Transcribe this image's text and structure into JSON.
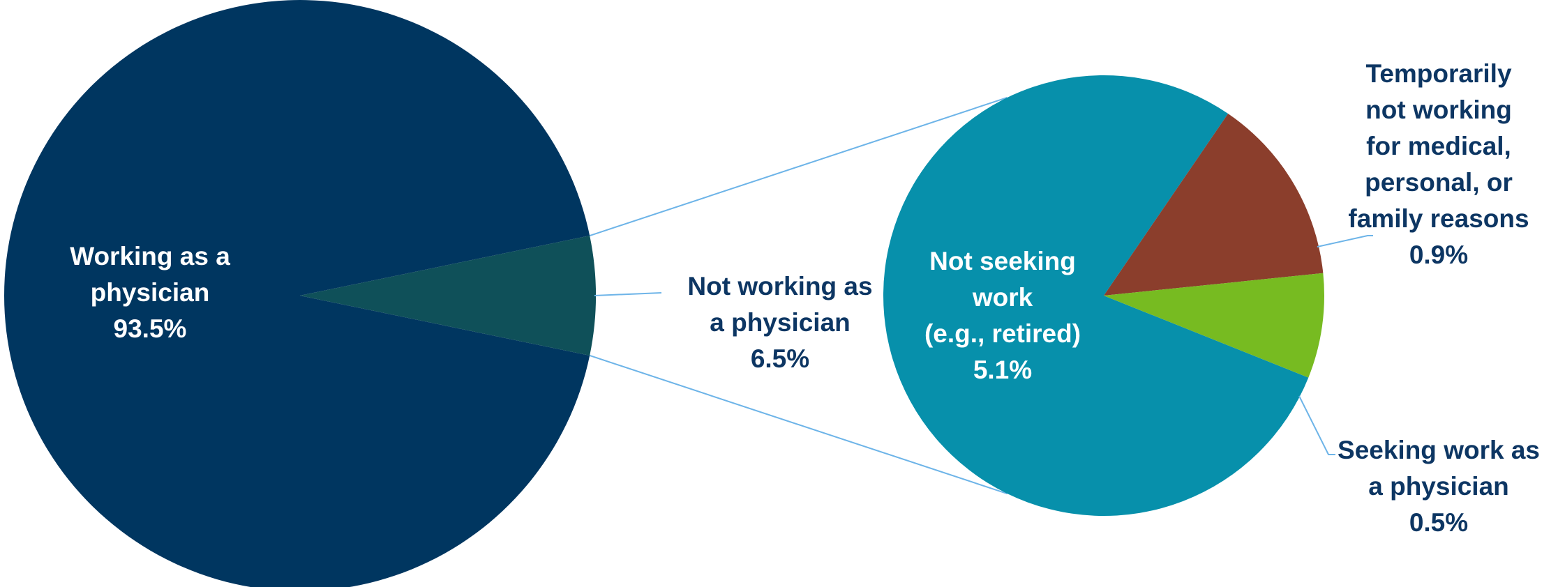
{
  "chart_data": {
    "type": "pie",
    "subtype": "pie-of-pie",
    "colors": {
      "working": "#003660",
      "not_working": "#0f5059",
      "not_seeking": "#0790ab",
      "temporarily": "#8b3e2c",
      "seeking": "#77bb21",
      "connector": "#6db4e8",
      "label_dark": "#0d3663",
      "label_light": "#ffffff"
    },
    "main_pie": {
      "slices": [
        {
          "key": "working",
          "lines": [
            "Working as a",
            "physician"
          ],
          "value_label": "93.5%",
          "value": 93.5
        },
        {
          "key": "not_working",
          "lines": [
            "Not working as",
            "a physician"
          ],
          "value_label": "6.5%",
          "value": 6.5
        }
      ]
    },
    "secondary_pie": {
      "slices": [
        {
          "key": "not_seeking",
          "lines": [
            "Not seeking",
            "work",
            "(e.g., retired)"
          ],
          "value_label": "5.1%",
          "value": 5.1
        },
        {
          "key": "temporarily",
          "lines": [
            "Temporarily",
            "not working",
            "for medical,",
            "personal,  or",
            "family reasons"
          ],
          "value_label": "0.9%",
          "value": 0.9
        },
        {
          "key": "seeking",
          "lines": [
            "Seeking work as",
            "a physician"
          ],
          "value_label": "0.5%",
          "value": 0.5
        }
      ]
    }
  }
}
